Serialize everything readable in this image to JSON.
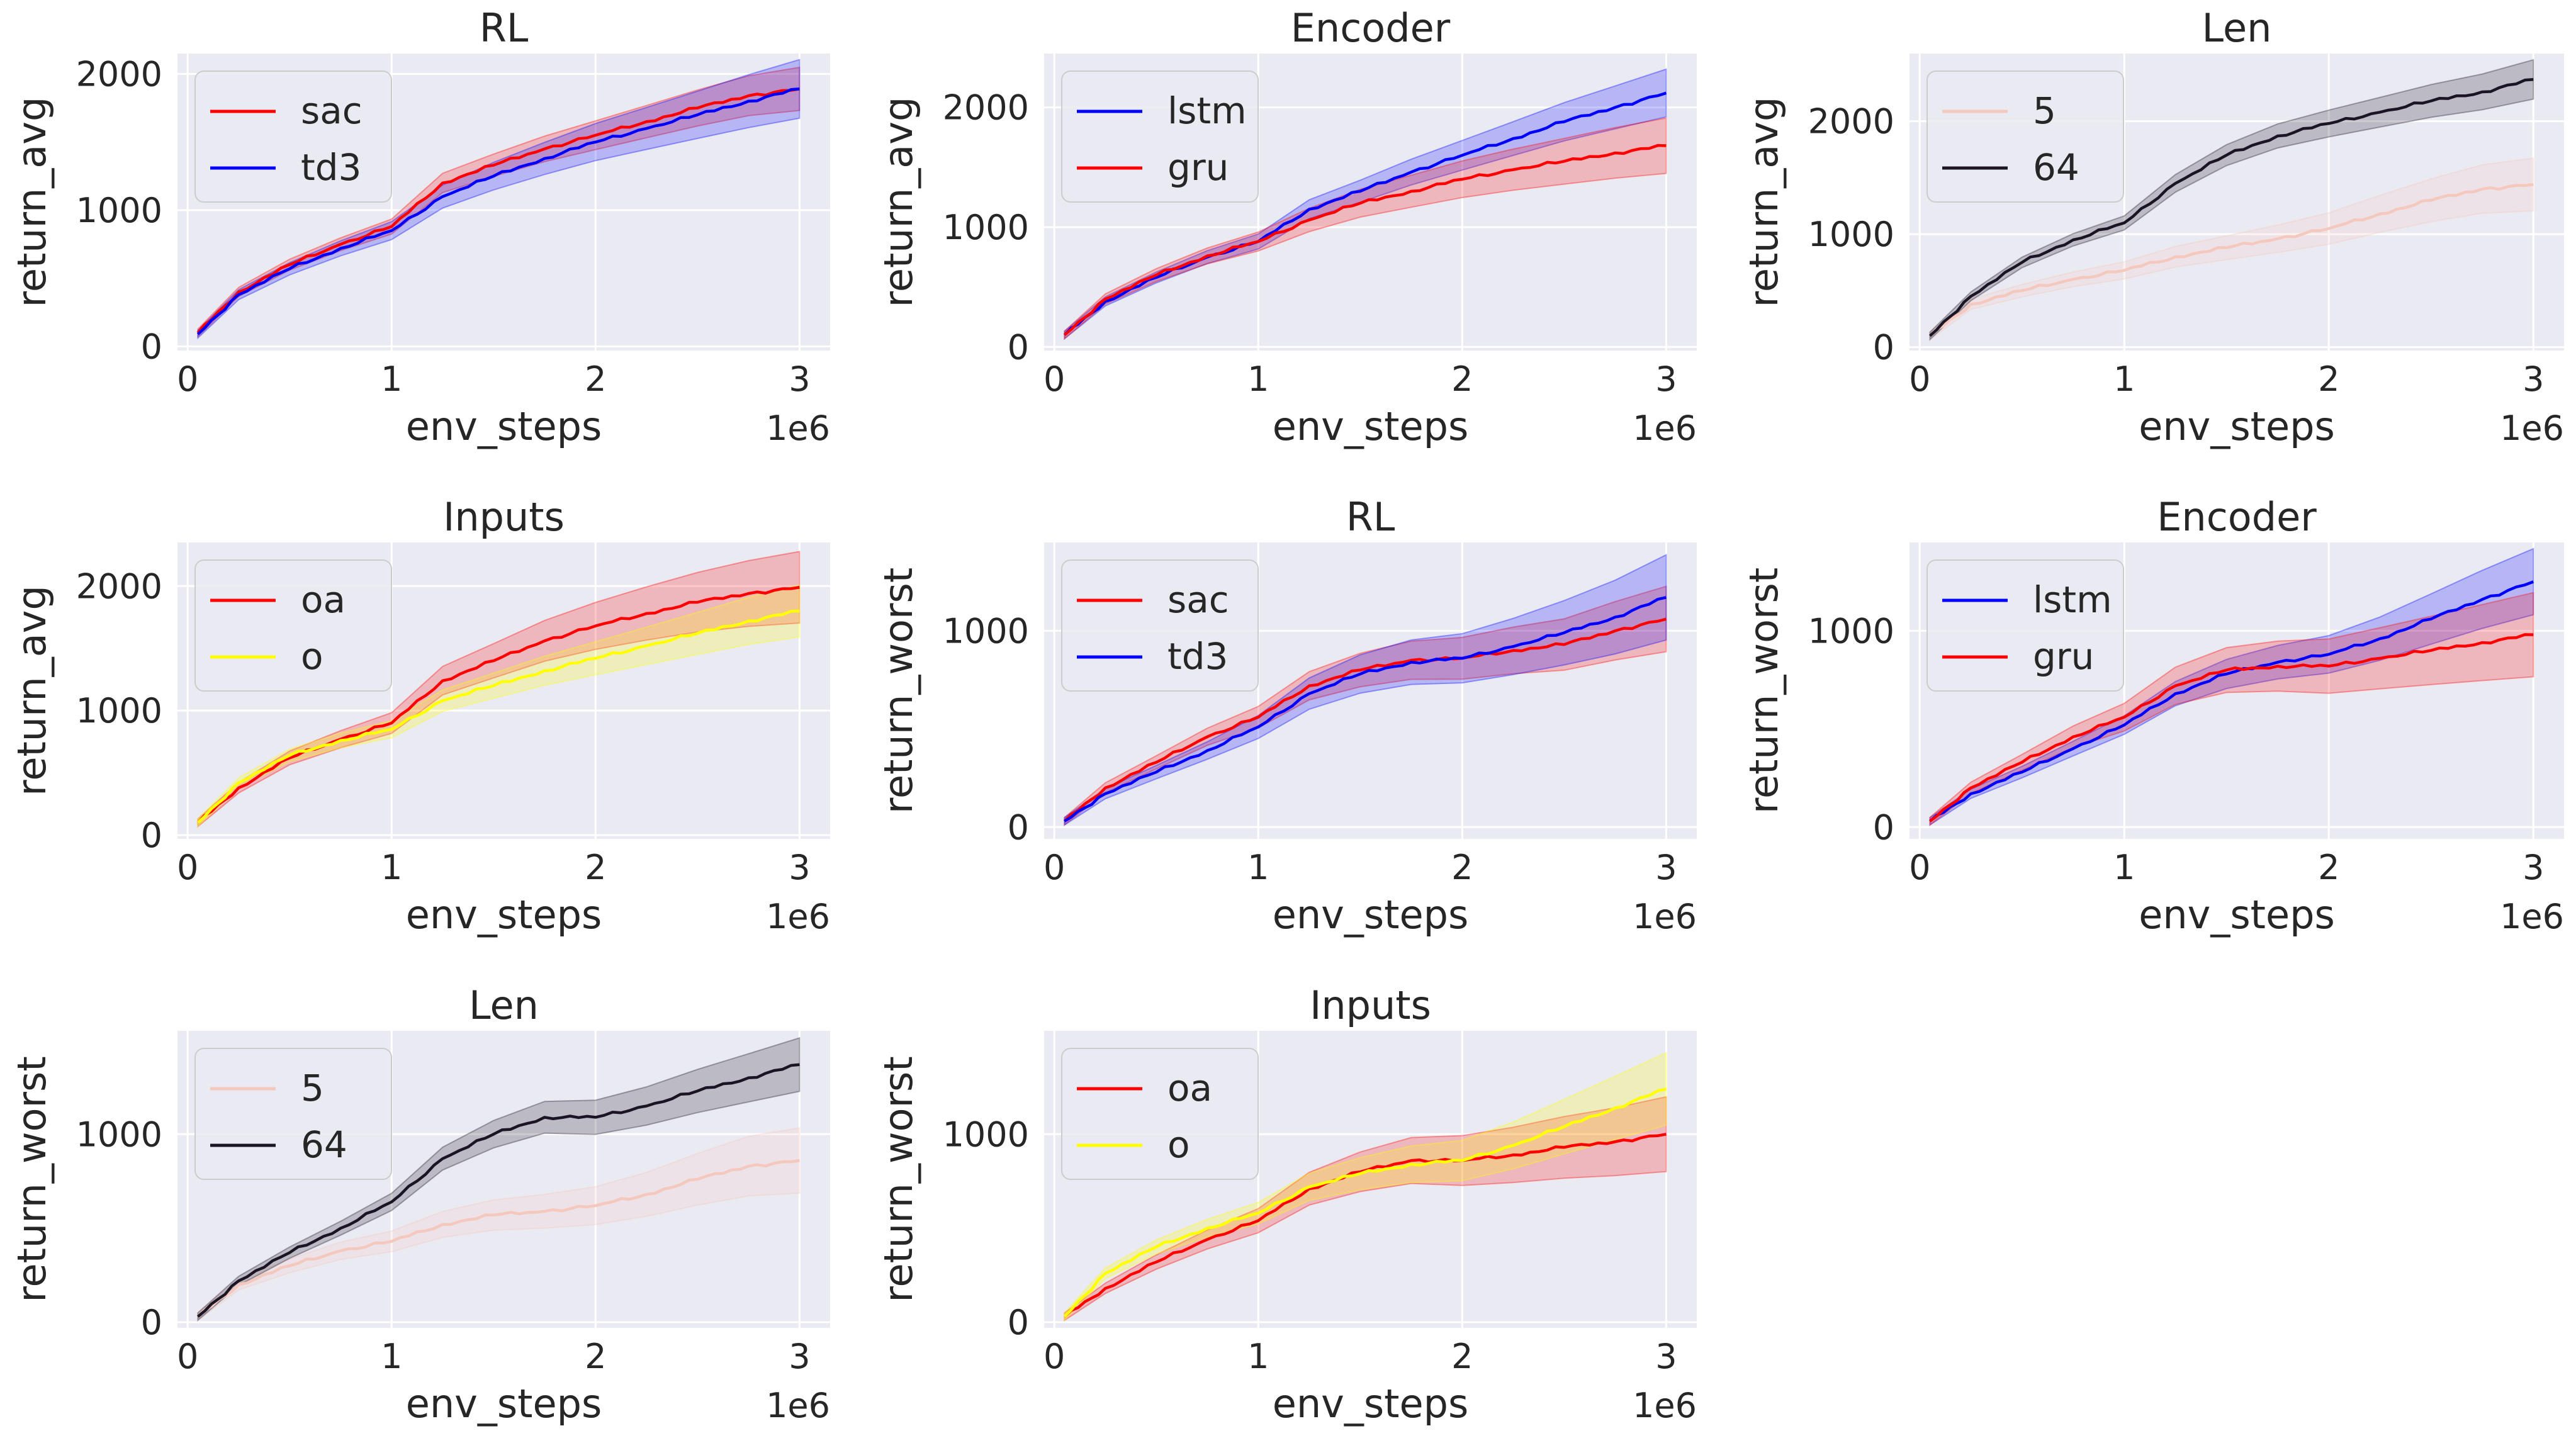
{
  "colors": {
    "background": "#eaeaf2",
    "grid": "#ffffff",
    "text": "#262626"
  },
  "chart_data": [
    {
      "type": "line",
      "title": "RL",
      "xlabel": "env_steps",
      "ylabel": "return_avg",
      "x_offset_label": "1e6",
      "xlim": [
        -0.05,
        3.15
      ],
      "ylim": [
        -30,
        2150
      ],
      "xticks": [
        0,
        1,
        2,
        3
      ],
      "yticks": [
        0,
        1000,
        2000
      ],
      "legend": "top-left",
      "series": [
        {
          "name": "sac",
          "color": "#ff0000",
          "band": 0.07,
          "x": [
            0.05,
            0.25,
            0.5,
            0.75,
            1.0,
            1.25,
            1.5,
            1.75,
            2.0,
            2.25,
            2.5,
            2.75,
            3.0
          ],
          "y": [
            100,
            400,
            600,
            750,
            880,
            1200,
            1330,
            1450,
            1550,
            1650,
            1750,
            1840,
            1890
          ]
        },
        {
          "name": "td3",
          "color": "#0000ff",
          "band": 0.1,
          "x": [
            0.05,
            0.25,
            0.5,
            0.75,
            1.0,
            1.25,
            1.5,
            1.75,
            2.0,
            2.25,
            2.5,
            2.75,
            3.0
          ],
          "y": [
            90,
            380,
            570,
            720,
            850,
            1100,
            1250,
            1380,
            1500,
            1600,
            1700,
            1800,
            1890
          ]
        }
      ]
    },
    {
      "type": "line",
      "title": "Encoder",
      "xlabel": "env_steps",
      "ylabel": "return_avg",
      "x_offset_label": "1e6",
      "xlim": [
        -0.05,
        3.15
      ],
      "ylim": [
        -30,
        2450
      ],
      "xticks": [
        0,
        1,
        2,
        3
      ],
      "yticks": [
        0,
        1000,
        2000
      ],
      "legend": "top-left",
      "series": [
        {
          "name": "lstm",
          "color": "#0000ff",
          "band": 0.08,
          "x": [
            0.05,
            0.25,
            0.5,
            0.75,
            1.0,
            1.25,
            1.5,
            1.75,
            2.0,
            2.25,
            2.5,
            2.75,
            3.0
          ],
          "y": [
            100,
            380,
            580,
            750,
            880,
            1150,
            1300,
            1460,
            1600,
            1740,
            1880,
            2000,
            2120
          ]
        },
        {
          "name": "gru",
          "color": "#ff0000",
          "band": 0.12,
          "x": [
            0.05,
            0.25,
            0.5,
            0.75,
            1.0,
            1.25,
            1.5,
            1.75,
            2.0,
            2.25,
            2.5,
            2.75,
            3.0
          ],
          "y": [
            100,
            400,
            600,
            760,
            880,
            1060,
            1200,
            1300,
            1400,
            1480,
            1550,
            1620,
            1680
          ]
        }
      ]
    },
    {
      "type": "line",
      "title": "Len",
      "xlabel": "env_steps",
      "ylabel": "return_avg",
      "x_offset_label": "1e6",
      "xlim": [
        -0.05,
        3.15
      ],
      "ylim": [
        -30,
        2600
      ],
      "xticks": [
        0,
        1,
        2,
        3
      ],
      "yticks": [
        0,
        1000,
        2000
      ],
      "legend": "top-left",
      "series": [
        {
          "name": "5",
          "color": "#f5c8bd",
          "band": 0.14,
          "x": [
            0.05,
            0.25,
            0.5,
            0.75,
            1.0,
            1.25,
            1.5,
            1.75,
            2.0,
            2.25,
            2.5,
            2.75,
            3.0
          ],
          "y": [
            100,
            380,
            500,
            600,
            680,
            800,
            880,
            960,
            1050,
            1180,
            1300,
            1400,
            1440
          ]
        },
        {
          "name": "64",
          "color": "#1a1424",
          "band": 0.06,
          "x": [
            0.05,
            0.25,
            0.5,
            0.75,
            1.0,
            1.25,
            1.5,
            1.75,
            2.0,
            2.25,
            2.5,
            2.75,
            3.0
          ],
          "y": [
            100,
            450,
            750,
            950,
            1100,
            1450,
            1700,
            1870,
            1980,
            2080,
            2180,
            2260,
            2370
          ]
        }
      ]
    },
    {
      "type": "line",
      "title": "Inputs",
      "xlabel": "env_steps",
      "ylabel": "return_avg",
      "x_offset_label": "1e6",
      "xlim": [
        -0.05,
        3.15
      ],
      "ylim": [
        -30,
        2350
      ],
      "xticks": [
        0,
        1,
        2,
        3
      ],
      "yticks": [
        0,
        1000,
        2000
      ],
      "legend": "top-left",
      "series": [
        {
          "name": "oa",
          "color": "#ff0000",
          "band": 0.13,
          "x": [
            0.05,
            0.25,
            0.5,
            0.75,
            1.0,
            1.25,
            1.5,
            1.75,
            2.0,
            2.25,
            2.5,
            2.75,
            3.0
          ],
          "y": [
            100,
            380,
            620,
            770,
            900,
            1240,
            1400,
            1560,
            1680,
            1780,
            1870,
            1940,
            1990
          ]
        },
        {
          "name": "o",
          "color": "#ffff00",
          "band": 0.1,
          "x": [
            0.05,
            0.25,
            0.5,
            0.75,
            1.0,
            1.25,
            1.5,
            1.75,
            2.0,
            2.25,
            2.5,
            2.75,
            3.0
          ],
          "y": [
            100,
            420,
            640,
            760,
            850,
            1080,
            1200,
            1320,
            1420,
            1520,
            1620,
            1720,
            1800
          ]
        }
      ]
    },
    {
      "type": "line",
      "title": "RL",
      "xlabel": "env_steps",
      "ylabel": "return_worst",
      "x_offset_label": "1e6",
      "xlim": [
        -0.05,
        3.15
      ],
      "ylim": [
        -60,
        1450
      ],
      "xticks": [
        0,
        1,
        2,
        3
      ],
      "yticks": [
        0,
        1000
      ],
      "legend": "top-left",
      "series": [
        {
          "name": "sac",
          "color": "#ff0000",
          "band": 0.14,
          "x": [
            0.05,
            0.25,
            0.5,
            0.75,
            1.0,
            1.25,
            1.5,
            1.75,
            2.0,
            2.25,
            2.5,
            2.75,
            3.0
          ],
          "y": [
            30,
            200,
            330,
            460,
            560,
            720,
            800,
            850,
            860,
            900,
            930,
            1000,
            1060
          ]
        },
        {
          "name": "td3",
          "color": "#0000ff",
          "band": 0.17,
          "x": [
            0.05,
            0.25,
            0.5,
            0.75,
            1.0,
            1.25,
            1.5,
            1.75,
            2.0,
            2.25,
            2.5,
            2.75,
            3.0
          ],
          "y": [
            30,
            170,
            280,
            390,
            510,
            680,
            780,
            840,
            860,
            920,
            990,
            1070,
            1170
          ]
        }
      ]
    },
    {
      "type": "line",
      "title": "Encoder",
      "xlabel": "env_steps",
      "ylabel": "return_worst",
      "x_offset_label": "1e6",
      "xlim": [
        -0.05,
        3.15
      ],
      "ylim": [
        -60,
        1450
      ],
      "xticks": [
        0,
        1,
        2,
        3
      ],
      "yticks": [
        0,
        1000
      ],
      "legend": "top-left",
      "series": [
        {
          "name": "lstm",
          "color": "#0000ff",
          "band": 0.12,
          "x": [
            0.05,
            0.25,
            0.5,
            0.75,
            1.0,
            1.25,
            1.5,
            1.75,
            2.0,
            2.25,
            2.5,
            2.75,
            3.0
          ],
          "y": [
            30,
            170,
            280,
            400,
            520,
            680,
            780,
            840,
            880,
            960,
            1060,
            1160,
            1250
          ]
        },
        {
          "name": "gru",
          "color": "#ff0000",
          "band": 0.2,
          "x": [
            0.05,
            0.25,
            0.5,
            0.75,
            1.0,
            1.25,
            1.5,
            1.75,
            2.0,
            2.25,
            2.5,
            2.75,
            3.0
          ],
          "y": [
            30,
            200,
            330,
            460,
            560,
            720,
            800,
            820,
            820,
            860,
            900,
            940,
            980
          ]
        }
      ]
    },
    {
      "type": "line",
      "title": "Len",
      "xlabel": "env_steps",
      "ylabel": "return_worst",
      "x_offset_label": "1e6",
      "xlim": [
        -0.05,
        3.15
      ],
      "ylim": [
        -30,
        1550
      ],
      "xticks": [
        0,
        1,
        2,
        3
      ],
      "yticks": [
        0,
        1000
      ],
      "legend": "top-left",
      "series": [
        {
          "name": "5",
          "color": "#f5c8bd",
          "band": 0.18,
          "x": [
            0.05,
            0.25,
            0.5,
            0.75,
            1.0,
            1.25,
            1.5,
            1.75,
            2.0,
            2.25,
            2.5,
            2.75,
            3.0
          ],
          "y": [
            30,
            200,
            300,
            380,
            430,
            520,
            570,
            590,
            620,
            680,
            760,
            830,
            860
          ]
        },
        {
          "name": "64",
          "color": "#1a1424",
          "band": 0.09,
          "x": [
            0.05,
            0.25,
            0.5,
            0.75,
            1.0,
            1.25,
            1.5,
            1.75,
            2.0,
            2.25,
            2.5,
            2.75,
            3.0
          ],
          "y": [
            30,
            220,
            370,
            500,
            640,
            870,
            1000,
            1090,
            1090,
            1150,
            1230,
            1300,
            1370
          ]
        }
      ]
    },
    {
      "type": "line",
      "title": "Inputs",
      "xlabel": "env_steps",
      "ylabel": "return_worst",
      "x_offset_label": "1e6",
      "xlim": [
        -0.05,
        3.15
      ],
      "ylim": [
        -30,
        1550
      ],
      "xticks": [
        0,
        1,
        2,
        3
      ],
      "yticks": [
        0,
        1000
      ],
      "legend": "top-left",
      "series": [
        {
          "name": "oa",
          "color": "#ff0000",
          "band": 0.18,
          "x": [
            0.05,
            0.25,
            0.5,
            0.75,
            1.0,
            1.25,
            1.5,
            1.75,
            2.0,
            2.25,
            2.5,
            2.75,
            3.0
          ],
          "y": [
            30,
            180,
            320,
            440,
            540,
            710,
            800,
            860,
            860,
            890,
            930,
            960,
            1000
          ]
        },
        {
          "name": "o",
          "color": "#ffff00",
          "band": 0.14,
          "x": [
            0.05,
            0.25,
            0.5,
            0.75,
            1.0,
            1.25,
            1.5,
            1.75,
            2.0,
            2.25,
            2.5,
            2.75,
            3.0
          ],
          "y": [
            30,
            260,
            400,
            500,
            580,
            720,
            790,
            840,
            860,
            940,
            1040,
            1140,
            1240
          ]
        }
      ]
    }
  ]
}
